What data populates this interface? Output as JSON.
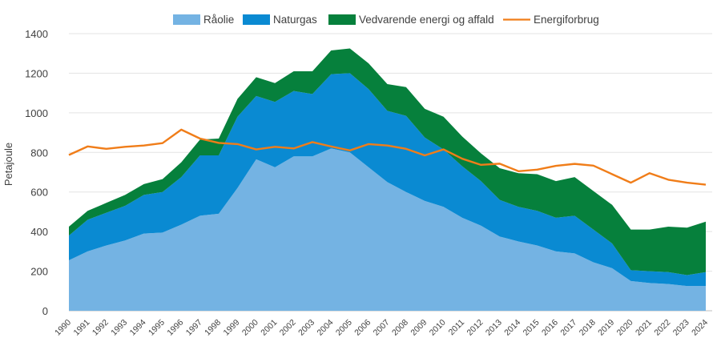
{
  "chart_data": {
    "type": "area",
    "ylabel": "Petajoule",
    "ylim": [
      0,
      1400
    ],
    "yticks": [
      0,
      200,
      400,
      600,
      800,
      1000,
      1200,
      1400
    ],
    "grid": true,
    "legend_position": "top",
    "x": [
      "1990",
      "1991",
      "1992",
      "1993",
      "1994",
      "1995",
      "1996",
      "1997",
      "1998",
      "1999",
      "2000",
      "2001",
      "2002",
      "2003",
      "2004",
      "2005",
      "2006",
      "2007",
      "2008",
      "2009",
      "2010",
      "2011",
      "2012",
      "2013",
      "2014",
      "2015",
      "2016",
      "2017",
      "2018",
      "2019",
      "2020",
      "2021",
      "2022",
      "2023",
      "2024"
    ],
    "stacked_series": [
      {
        "name": "Råolie",
        "color": "#74b3e3",
        "values": [
          255,
          300,
          330,
          355,
          390,
          395,
          435,
          480,
          490,
          620,
          765,
          725,
          780,
          780,
          820,
          800,
          725,
          650,
          600,
          555,
          525,
          470,
          430,
          375,
          350,
          330,
          300,
          290,
          245,
          215,
          150,
          140,
          135,
          125,
          125
        ]
      },
      {
        "name": "Naturgas",
        "color": "#0a8ad2",
        "values": [
          125,
          160,
          165,
          175,
          195,
          205,
          240,
          305,
          295,
          360,
          320,
          330,
          330,
          315,
          375,
          400,
          395,
          360,
          385,
          320,
          290,
          260,
          225,
          185,
          175,
          175,
          170,
          190,
          165,
          125,
          55,
          60,
          60,
          55,
          70
        ]
      },
      {
        "name": "Vedvarende energi og affald",
        "color": "#06803c",
        "values": [
          45,
          45,
          50,
          55,
          55,
          65,
          75,
          80,
          85,
          90,
          95,
          95,
          100,
          115,
          120,
          125,
          130,
          135,
          145,
          145,
          165,
          150,
          140,
          160,
          170,
          185,
          185,
          195,
          195,
          195,
          205,
          210,
          230,
          240,
          255
        ]
      }
    ],
    "line_series": [
      {
        "name": "Energiforbrug",
        "color": "#f07d19",
        "values": [
          787,
          830,
          818,
          828,
          835,
          847,
          915,
          870,
          848,
          842,
          815,
          828,
          820,
          852,
          830,
          810,
          842,
          835,
          818,
          785,
          815,
          768,
          737,
          743,
          705,
          713,
          732,
          742,
          733,
          690,
          647,
          695,
          662,
          647,
          637
        ]
      }
    ]
  }
}
